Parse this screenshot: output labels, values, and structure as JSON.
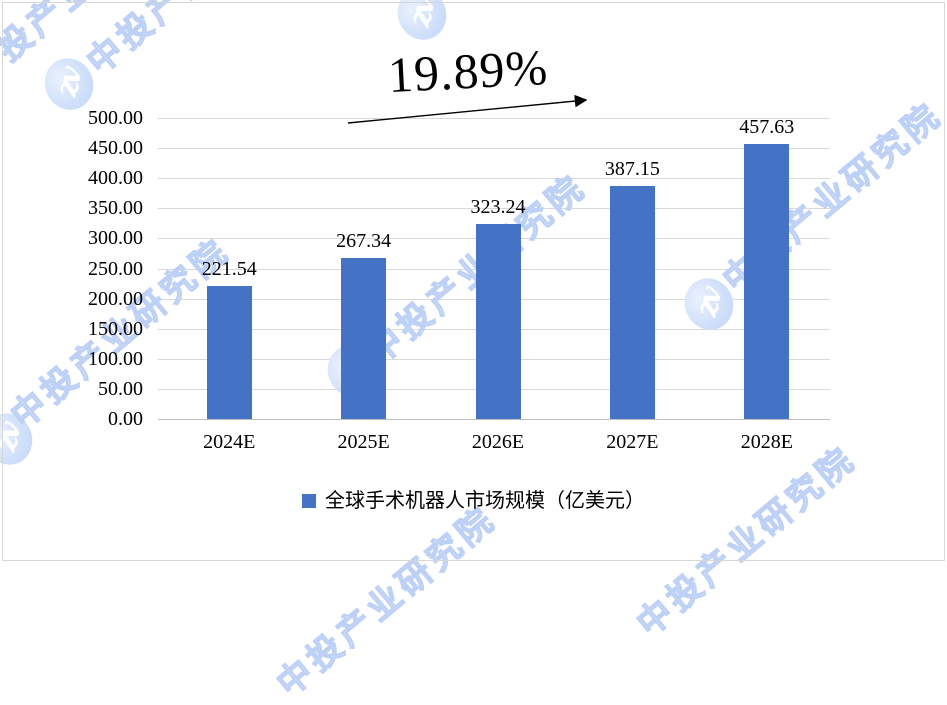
{
  "chart_data": {
    "type": "bar",
    "title": "",
    "categories": [
      "2024E",
      "2025E",
      "2026E",
      "2027E",
      "2028E"
    ],
    "values": [
      221.54,
      267.34,
      323.24,
      387.15,
      457.63
    ],
    "value_labels": [
      "221.54",
      "267.34",
      "323.24",
      "387.15",
      "457.63"
    ],
    "series_name": "全球手术机器人市场规模（亿美元）",
    "xlabel": "",
    "ylabel": "",
    "ylim": [
      0,
      500
    ],
    "y_tick_step": 50,
    "y_tick_labels_top_down": [
      "500.00",
      "450.00",
      "400.00",
      "350.00",
      "300.00",
      "250.00",
      "200.00",
      "150.00",
      "100.00",
      "50.00",
      "0.00"
    ],
    "grid": true,
    "legend_position": "bottom",
    "bar_color": "#4472C4",
    "annotation": {
      "label": "19.89%",
      "type": "growth-arrow"
    }
  },
  "annotation": {
    "growth_label": "19.89%"
  },
  "legend": {
    "label": "全球手术机器人市场规模（亿美元）",
    "marker_color": "#4472C4"
  },
  "watermark": {
    "text": "中投产业研究院",
    "logo_monogram": "zv",
    "outline_color": "#bdd0f5"
  },
  "colors": {
    "bar": "#4472C4",
    "gridline": "#d9d9d9",
    "axis": "#bfbfbf",
    "text": "#000000",
    "background": "#ffffff"
  }
}
